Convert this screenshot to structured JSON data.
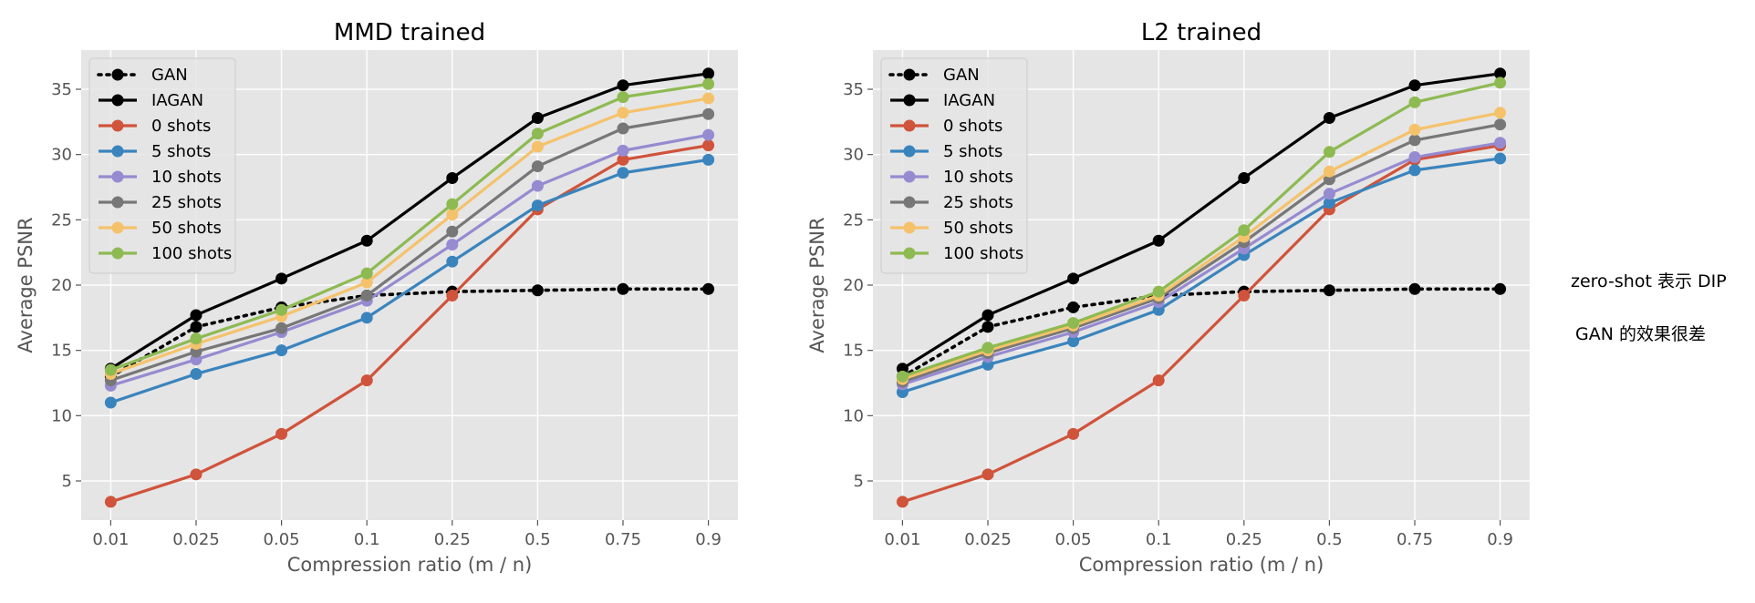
{
  "annotations": {
    "line1": "zero-shot 表示 DIP",
    "line2": "GAN 的效果很差"
  },
  "colors": {
    "background": "#e5e5e5",
    "grid": "#ffffff"
  },
  "chart_data": [
    {
      "type": "line",
      "title": "MMD trained",
      "xlabel": "Compression ratio (m / n)",
      "ylabel": "Average PSNR",
      "categories": [
        "0.01",
        "0.025",
        "0.05",
        "0.1",
        "0.25",
        "0.5",
        "0.75",
        "0.9"
      ],
      "ylim": [
        2,
        38
      ],
      "yticks": [
        5,
        10,
        15,
        20,
        25,
        30,
        35
      ],
      "grid": true,
      "legend_position": "upper-left",
      "series": [
        {
          "name": "GAN",
          "color": "#000000",
          "style": "dotted",
          "values": [
            13.0,
            16.8,
            18.3,
            19.2,
            19.5,
            19.6,
            19.7,
            19.7
          ]
        },
        {
          "name": "IAGAN",
          "color": "#000000",
          "style": "solid",
          "values": [
            13.6,
            17.7,
            20.5,
            23.4,
            28.2,
            32.8,
            35.3,
            36.2
          ]
        },
        {
          "name": "0 shots",
          "color": "#d0533b",
          "style": "solid",
          "values": [
            3.4,
            5.5,
            8.6,
            12.7,
            19.2,
            25.8,
            29.6,
            30.7
          ]
        },
        {
          "name": "5 shots",
          "color": "#3a84bd",
          "style": "solid",
          "values": [
            11.0,
            13.2,
            15.0,
            17.5,
            21.8,
            26.1,
            28.6,
            29.6
          ]
        },
        {
          "name": "10 shots",
          "color": "#968bd1",
          "style": "solid",
          "values": [
            12.3,
            14.3,
            16.4,
            18.8,
            23.1,
            27.6,
            30.3,
            31.5
          ]
        },
        {
          "name": "25 shots",
          "color": "#777777",
          "style": "solid",
          "values": [
            12.7,
            14.9,
            16.7,
            19.2,
            24.1,
            29.1,
            32.0,
            33.1
          ]
        },
        {
          "name": "50 shots",
          "color": "#f5c26b",
          "style": "solid",
          "values": [
            13.2,
            15.5,
            17.6,
            20.2,
            25.4,
            30.6,
            33.2,
            34.3
          ]
        },
        {
          "name": "100 shots",
          "color": "#8eba52",
          "style": "solid",
          "values": [
            13.5,
            15.9,
            18.1,
            20.9,
            26.2,
            31.6,
            34.4,
            35.4
          ]
        }
      ]
    },
    {
      "type": "line",
      "title": "L2 trained",
      "xlabel": "Compression ratio (m / n)",
      "ylabel": "Average PSNR",
      "categories": [
        "0.01",
        "0.025",
        "0.05",
        "0.1",
        "0.25",
        "0.5",
        "0.75",
        "0.9"
      ],
      "ylim": [
        2,
        38
      ],
      "yticks": [
        5,
        10,
        15,
        20,
        25,
        30,
        35
      ],
      "grid": true,
      "legend_position": "upper-left",
      "series": [
        {
          "name": "GAN",
          "color": "#000000",
          "style": "dotted",
          "values": [
            13.0,
            16.8,
            18.3,
            19.2,
            19.5,
            19.6,
            19.7,
            19.7
          ]
        },
        {
          "name": "IAGAN",
          "color": "#000000",
          "style": "solid",
          "values": [
            13.6,
            17.7,
            20.5,
            23.4,
            28.2,
            32.8,
            35.3,
            36.2
          ]
        },
        {
          "name": "0 shots",
          "color": "#d0533b",
          "style": "solid",
          "values": [
            3.4,
            5.5,
            8.6,
            12.7,
            19.2,
            25.8,
            29.6,
            30.7
          ]
        },
        {
          "name": "5 shots",
          "color": "#3a84bd",
          "style": "solid",
          "values": [
            11.8,
            13.9,
            15.7,
            18.1,
            22.3,
            26.3,
            28.8,
            29.7
          ]
        },
        {
          "name": "10 shots",
          "color": "#968bd1",
          "style": "solid",
          "values": [
            12.4,
            14.5,
            16.4,
            18.7,
            22.8,
            27.0,
            29.8,
            30.9
          ]
        },
        {
          "name": "25 shots",
          "color": "#777777",
          "style": "solid",
          "values": [
            12.6,
            14.8,
            16.7,
            19.0,
            23.3,
            28.1,
            31.1,
            32.3
          ]
        },
        {
          "name": "50 shots",
          "color": "#f5c26b",
          "style": "solid",
          "values": [
            12.8,
            15.0,
            16.9,
            19.2,
            23.7,
            28.7,
            31.9,
            33.2
          ]
        },
        {
          "name": "100 shots",
          "color": "#8eba52",
          "style": "solid",
          "values": [
            13.0,
            15.2,
            17.1,
            19.5,
            24.2,
            30.2,
            34.0,
            35.5
          ]
        }
      ]
    }
  ]
}
